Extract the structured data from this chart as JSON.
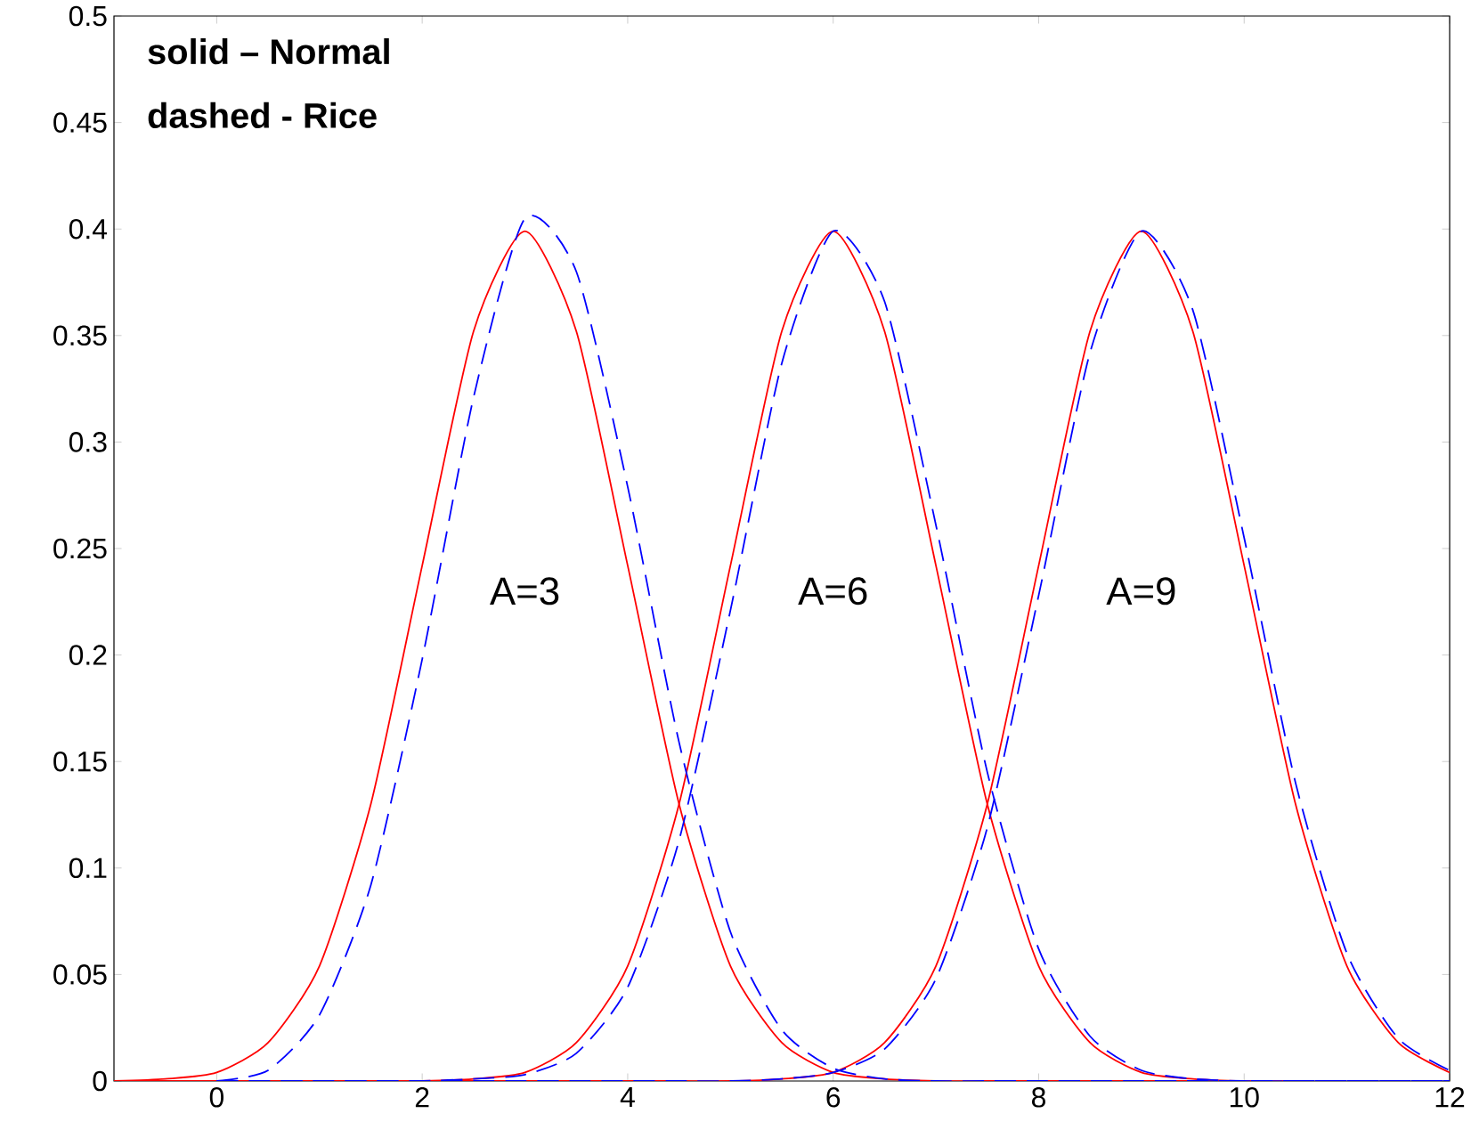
{
  "chart_data": {
    "type": "line",
    "xlim": [
      -1,
      12
    ],
    "ylim": [
      0,
      0.5
    ],
    "xticks": [
      0,
      2,
      4,
      6,
      8,
      10,
      12
    ],
    "yticks": [
      0,
      0.05,
      0.1,
      0.15,
      0.2,
      0.25,
      0.3,
      0.35,
      0.4,
      0.45,
      0.5
    ],
    "annotations": [
      "solid – Normal",
      "dashed - Rice",
      "A=3",
      "A=6",
      "A=9"
    ],
    "series": [
      {
        "color": "#ff0000",
        "line_style": "solid",
        "x": [
          -1,
          -0.5,
          0,
          0.5,
          1,
          1.5,
          2,
          2.5,
          3,
          3.5,
          4,
          4.5,
          5,
          5.5,
          6,
          6.5,
          7,
          7.5,
          8,
          8.5,
          9,
          9.5,
          10,
          10.5
        ],
        "values": [
          0,
          0.001,
          0.004,
          0.018,
          0.054,
          0.13,
          0.242,
          0.352,
          0.399,
          0.352,
          0.242,
          0.13,
          0.054,
          0.018,
          0.004,
          0.001,
          0,
          0,
          0,
          0,
          0,
          0,
          0,
          0
        ]
      },
      {
        "color": "#ff0000",
        "line_style": "solid",
        "x": [
          -1,
          -0.5,
          0,
          0.5,
          1,
          1.5,
          2,
          2.5,
          3,
          3.5,
          4,
          4.5,
          5,
          5.5,
          6,
          6.5,
          7,
          7.5,
          8,
          8.5,
          9,
          9.5,
          10,
          10.5
        ],
        "values": [
          0,
          0,
          0,
          0,
          0,
          0,
          0,
          0.001,
          0.004,
          0.018,
          0.054,
          0.13,
          0.242,
          0.352,
          0.399,
          0.352,
          0.242,
          0.13,
          0.054,
          0.018,
          0.004,
          0.001,
          0,
          0
        ]
      },
      {
        "color": "#ff0000",
        "line_style": "solid",
        "x": [
          -1,
          -0.5,
          0,
          0.5,
          1,
          1.5,
          2,
          2.5,
          3,
          3.5,
          4,
          4.5,
          5,
          5.5,
          6,
          6.5,
          7,
          7.5,
          8,
          8.5,
          9,
          9.5,
          10,
          10.5,
          11,
          11.5,
          12
        ],
        "values": [
          0,
          0,
          0,
          0,
          0,
          0,
          0,
          0,
          0,
          0,
          0,
          0,
          0,
          0.001,
          0.004,
          0.018,
          0.054,
          0.13,
          0.242,
          0.352,
          0.399,
          0.352,
          0.242,
          0.13,
          0.054,
          0.018,
          0.004
        ]
      },
      {
        "color": "#0000ff",
        "line_style": "dashed",
        "x": [
          0,
          0.5,
          1,
          1.5,
          2,
          2.5,
          3,
          3.5,
          4,
          4.5,
          5,
          5.5,
          6,
          6.5,
          7,
          7.5,
          8,
          8.5,
          9,
          9.5,
          10,
          10.5,
          11,
          11.5,
          12
        ],
        "values": [
          0,
          0.005,
          0.031,
          0.092,
          0.198,
          0.321,
          0.405,
          0.38,
          0.279,
          0.159,
          0.07,
          0.024,
          0.006,
          0.001,
          0,
          0,
          0,
          0,
          0,
          0,
          0,
          0,
          0,
          0,
          0
        ]
      },
      {
        "color": "#0000ff",
        "line_style": "dashed",
        "x": [
          0,
          0.5,
          1,
          1.5,
          2,
          2.5,
          3,
          3.5,
          4,
          4.5,
          5,
          5.5,
          6,
          6.5,
          7,
          7.5,
          8,
          8.5,
          9,
          9.5,
          10,
          10.5,
          11,
          11.5,
          12
        ],
        "values": [
          0,
          0,
          0,
          0,
          0,
          0.001,
          0.003,
          0.013,
          0.044,
          0.113,
          0.221,
          0.337,
          0.399,
          0.366,
          0.261,
          0.145,
          0.062,
          0.021,
          0.005,
          0.001,
          0,
          0,
          0,
          0,
          0
        ]
      },
      {
        "color": "#0000ff",
        "line_style": "dashed",
        "x": [
          0,
          0.5,
          1,
          1.5,
          2,
          2.5,
          3,
          3.5,
          4,
          4.5,
          5,
          5.5,
          6,
          6.5,
          7,
          7.5,
          8,
          8.5,
          9,
          9.5,
          10,
          10.5,
          11,
          11.5,
          12
        ],
        "values": [
          0,
          0,
          0,
          0,
          0,
          0,
          0,
          0,
          0,
          0,
          0,
          0.001,
          0.004,
          0.015,
          0.048,
          0.119,
          0.228,
          0.342,
          0.399,
          0.362,
          0.255,
          0.14,
          0.06,
          0.02,
          0.005
        ]
      }
    ]
  }
}
